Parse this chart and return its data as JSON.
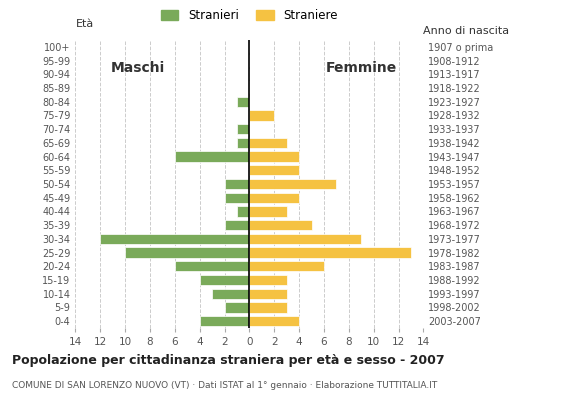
{
  "age_groups": [
    "0-4",
    "5-9",
    "10-14",
    "15-19",
    "20-24",
    "25-29",
    "30-34",
    "35-39",
    "40-44",
    "45-49",
    "50-54",
    "55-59",
    "60-64",
    "65-69",
    "70-74",
    "75-79",
    "80-84",
    "85-89",
    "90-94",
    "95-99",
    "100+"
  ],
  "birth_years": [
    "2003-2007",
    "1998-2002",
    "1993-1997",
    "1988-1992",
    "1983-1987",
    "1978-1982",
    "1973-1977",
    "1968-1972",
    "1963-1967",
    "1958-1962",
    "1953-1957",
    "1948-1952",
    "1943-1947",
    "1938-1942",
    "1933-1937",
    "1928-1932",
    "1923-1927",
    "1918-1922",
    "1913-1917",
    "1908-1912",
    "1907 o prima"
  ],
  "males": [
    4,
    2,
    3,
    4,
    6,
    10,
    12,
    2,
    1,
    2,
    2,
    0,
    6,
    1,
    1,
    0,
    1,
    0,
    0,
    0,
    0
  ],
  "females": [
    4,
    3,
    3,
    3,
    6,
    13,
    9,
    5,
    3,
    4,
    7,
    4,
    4,
    3,
    0,
    2,
    0,
    0,
    0,
    0,
    0
  ],
  "male_color": "#7aaa5a",
  "female_color": "#f5c242",
  "title": "Popolazione per cittadinanza straniera per età e sesso - 2007",
  "subtitle": "COMUNE DI SAN LORENZO NUOVO (VT) · Dati ISTAT al 1° gennaio · Elaborazione TUTTITALIA.IT",
  "ylabel_left": "Età",
  "ylabel_right": "Anno di nascita",
  "label_males": "Stranieri",
  "label_females": "Straniere",
  "xlim": 14,
  "background_color": "#ffffff",
  "maschi_label": "Maschi",
  "femmine_label": "Femmine"
}
